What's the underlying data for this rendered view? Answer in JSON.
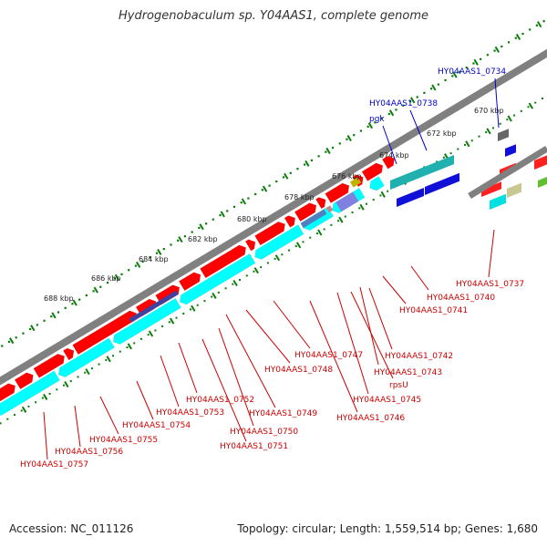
{
  "title": "Hydrogenobaculum sp. Y04AAS1, complete genome",
  "footer": {
    "accession": "Accession: NC_011126",
    "topology": "Topology: circular; Length: 1,559,514 bp; Genes: 1,680"
  },
  "colors": {
    "forward_gene": "#ff0000",
    "reverse_gene": "#00ffff",
    "highlight": "#1010d8",
    "backbone": "#808080",
    "tick": "#0a7d0a",
    "label_red": "#cc0000",
    "label_blue": "#0000cc"
  },
  "ticks": [
    {
      "label": "670 kbp"
    },
    {
      "label": "672 kbp"
    },
    {
      "label": "674 kbp"
    },
    {
      "label": "676 kbp"
    },
    {
      "label": "678 kbp"
    },
    {
      "label": "680 kbp"
    },
    {
      "label": "682 kbp"
    },
    {
      "label": "684 kbp"
    },
    {
      "label": "686 kbp"
    },
    {
      "label": "688 kbp"
    }
  ],
  "gene_labels": [
    {
      "text": "HY04AAS1_0734",
      "color": "blue"
    },
    {
      "text": "HY04AAS1_0738",
      "color": "blue"
    },
    {
      "text": "pgk",
      "color": "blue"
    },
    {
      "text": "HY04AAS1_0737",
      "color": "red"
    },
    {
      "text": "HY04AAS1_0740",
      "color": "red"
    },
    {
      "text": "HY04AAS1_0741",
      "color": "red"
    },
    {
      "text": "HY04AAS1_0742",
      "color": "red"
    },
    {
      "text": "HY04AAS1_0743",
      "color": "red"
    },
    {
      "text": "rpsU",
      "color": "red"
    },
    {
      "text": "HY04AAS1_0745",
      "color": "red"
    },
    {
      "text": "HY04AAS1_0746",
      "color": "red"
    },
    {
      "text": "HY04AAS1_0747",
      "color": "red"
    },
    {
      "text": "HY04AAS1_0748",
      "color": "red"
    },
    {
      "text": "HY04AAS1_0749",
      "color": "red"
    },
    {
      "text": "HY04AAS1_0750",
      "color": "red"
    },
    {
      "text": "HY04AAS1_0751",
      "color": "red"
    },
    {
      "text": "HY04AAS1_0752",
      "color": "red"
    },
    {
      "text": "HY04AAS1_0753",
      "color": "red"
    },
    {
      "text": "HY04AAS1_0754",
      "color": "red"
    },
    {
      "text": "HY04AAS1_0755",
      "color": "red"
    },
    {
      "text": "HY04AAS1_0756",
      "color": "red"
    },
    {
      "text": "HY04AAS1_0757",
      "color": "red"
    }
  ]
}
